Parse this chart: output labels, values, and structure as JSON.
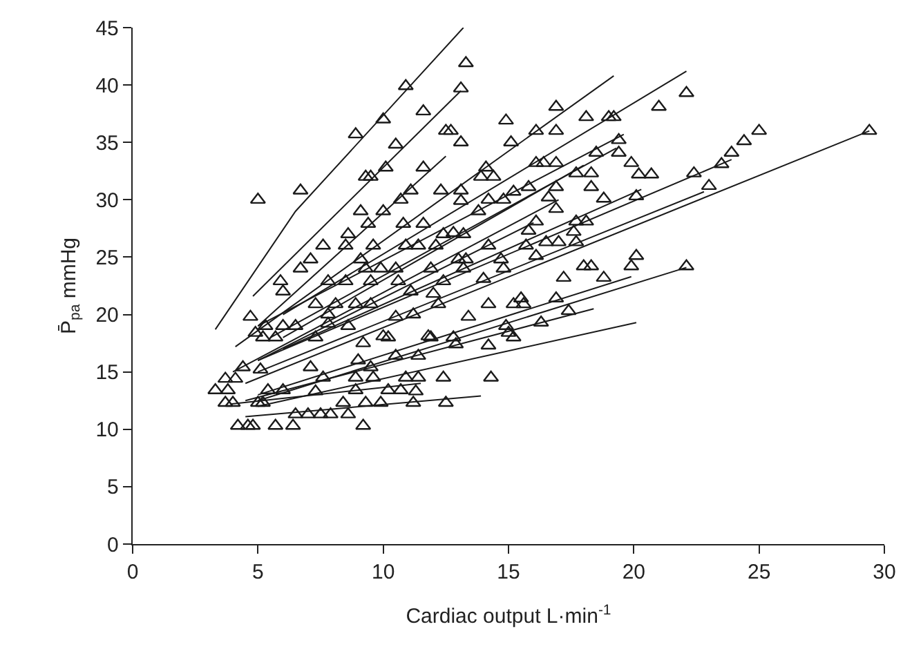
{
  "chart_data": {
    "type": "scatter",
    "xlabel": "Cardiac output L·min$^{-1}$",
    "ylabel": "P̄$_{pa}$ mmHg",
    "xlim": [
      0,
      30
    ],
    "ylim": [
      0,
      45
    ],
    "xticks": [
      0,
      5,
      10,
      15,
      20,
      25,
      30
    ],
    "yticks": [
      0,
      5,
      10,
      15,
      20,
      25,
      30,
      35,
      40,
      45
    ],
    "series": [
      {
        "marker": "triangle",
        "color": "#1a1a1a",
        "x": [
          13.3,
          10.9,
          13.1,
          11.6,
          10.0,
          14.9,
          8.9,
          12.5,
          12.7,
          13.1,
          10.5,
          15.1,
          11.6,
          10.1,
          9.3,
          9.5,
          14.1,
          13.9,
          14.4,
          5.0,
          6.7,
          11.1,
          12.3,
          13.1,
          10.7,
          9.1,
          13.1,
          13.8,
          14.2,
          14.8,
          15.2,
          10.0,
          9.4,
          10.8,
          11.6,
          8.6,
          12.4,
          12.8,
          13.2,
          7.6,
          8.5,
          9.6,
          10.9,
          11.4,
          12.1,
          14.2,
          15.7,
          7.1,
          9.1,
          13.0,
          13.3,
          14.7,
          6.7,
          9.3,
          9.9,
          10.5,
          11.9,
          13.2,
          14.8,
          5.9,
          7.8,
          8.5,
          9.5,
          10.6,
          12.4,
          14.0,
          6.0,
          11.1,
          12.0,
          7.3,
          8.1,
          8.9,
          9.5,
          12.2,
          14.2,
          15.2,
          15.6,
          4.7,
          7.8,
          10.5,
          11.2,
          5.3,
          6.0,
          6.5,
          7.8,
          8.6,
          13.4,
          14.9,
          5.2,
          5.7,
          7.3,
          10.2,
          11.9,
          12.8,
          15.2,
          4.9,
          10.0,
          11.8,
          12.9,
          14.2,
          15.0,
          9.2,
          4.4,
          3.7,
          4.1,
          5.1,
          7.1,
          7.6,
          9.0,
          9.5,
          10.5,
          11.4,
          8.9,
          9.6,
          10.9,
          11.4,
          12.4,
          14.3,
          3.3,
          3.8,
          5.4,
          6.0,
          7.3,
          8.9,
          10.2,
          10.7,
          11.3,
          3.7,
          4.0,
          5.0,
          5.2,
          8.4,
          9.3,
          9.9,
          11.2,
          12.5,
          6.5,
          7.0,
          7.5,
          7.9,
          8.6,
          4.2,
          4.6,
          4.8,
          5.7,
          6.4,
          9.2,
          16.9,
          18.1,
          19.0,
          19.2,
          21.0,
          22.1,
          16.1,
          16.9,
          19.4,
          18.5,
          19.4,
          16.1,
          16.4,
          16.9,
          19.9,
          17.7,
          18.3,
          20.2,
          20.7,
          22.4,
          23.5,
          23.9,
          24.4,
          25.0,
          29.4,
          23.0,
          15.8,
          16.9,
          18.3,
          16.6,
          18.8,
          20.1,
          16.9,
          16.1,
          17.7,
          18.1,
          15.8,
          17.6,
          16.5,
          17.0,
          17.7,
          16.1,
          18.0,
          18.3,
          19.9,
          20.1,
          22.1,
          17.2,
          18.8,
          15.5,
          16.9,
          17.4,
          16.3
        ],
        "values": [
          41.9,
          39.9,
          39.7,
          37.7,
          37.0,
          36.9,
          35.7,
          36.0,
          36.0,
          35.0,
          34.8,
          35.0,
          32.8,
          32.8,
          32.0,
          32.0,
          32.8,
          32.0,
          32.0,
          30.0,
          30.8,
          30.8,
          30.8,
          30.8,
          30.0,
          29.0,
          29.9,
          29.0,
          30.0,
          30.0,
          30.7,
          29.0,
          27.9,
          27.9,
          27.9,
          27.0,
          27.0,
          27.1,
          27.0,
          26.0,
          26.0,
          26.0,
          26.0,
          26.0,
          26.0,
          26.0,
          26.0,
          24.8,
          24.8,
          24.8,
          24.8,
          24.8,
          24.0,
          24.0,
          24.0,
          24.0,
          24.0,
          24.0,
          24.0,
          22.9,
          22.9,
          22.9,
          22.9,
          22.9,
          22.9,
          23.1,
          22.0,
          22.0,
          21.8,
          20.9,
          20.9,
          20.9,
          20.9,
          20.9,
          20.9,
          20.9,
          20.9,
          19.8,
          20.0,
          19.8,
          20.0,
          19.0,
          19.0,
          19.0,
          19.2,
          19.0,
          19.8,
          19.0,
          18.0,
          18.0,
          18.0,
          18.0,
          18.0,
          18.0,
          18.0,
          18.4,
          18.1,
          18.1,
          17.4,
          17.3,
          18.4,
          17.5,
          15.4,
          14.4,
          14.4,
          15.2,
          15.4,
          14.5,
          16.0,
          15.4,
          16.4,
          16.4,
          14.5,
          14.5,
          14.5,
          14.5,
          14.5,
          14.5,
          13.4,
          13.4,
          13.4,
          13.4,
          13.3,
          13.4,
          13.4,
          13.4,
          13.3,
          12.3,
          12.3,
          12.3,
          12.3,
          12.3,
          12.3,
          12.3,
          12.3,
          12.3,
          11.3,
          11.3,
          11.3,
          11.3,
          11.3,
          10.3,
          10.3,
          10.3,
          10.3,
          10.3,
          10.3,
          38.1,
          37.2,
          37.2,
          37.2,
          38.1,
          39.3,
          36.0,
          36.0,
          35.2,
          34.1,
          34.1,
          33.2,
          33.2,
          33.2,
          33.2,
          32.3,
          32.3,
          32.2,
          32.2,
          32.3,
          33.1,
          34.1,
          35.1,
          36.0,
          36.0,
          31.2,
          31.1,
          31.1,
          31.1,
          30.2,
          30.1,
          30.3,
          29.2,
          28.1,
          28.1,
          28.1,
          27.3,
          27.2,
          26.3,
          26.3,
          26.3,
          25.1,
          24.2,
          24.2,
          24.2,
          25.1,
          24.2,
          23.2,
          23.2,
          21.4,
          21.4,
          20.3,
          19.3
        ]
      },
      {
        "type": "line",
        "marker": "none",
        "color": "#1a1a1a",
        "x": [
          3.3,
          6.5,
          13.2
        ],
        "values": [
          18.7,
          29.0,
          45.0
        ]
      },
      {
        "type": "line",
        "marker": "none",
        "color": "#1a1a1a",
        "x": [
          4.8,
          13.1
        ],
        "values": [
          21.6,
          39.5
        ]
      },
      {
        "type": "line",
        "marker": "none",
        "color": "#1a1a1a",
        "x": [
          5.0,
          12.5
        ],
        "values": [
          19.0,
          33.8
        ]
      },
      {
        "type": "line",
        "marker": "none",
        "color": "#1a1a1a",
        "x": [
          4.1,
          19.2
        ],
        "values": [
          17.2,
          40.8
        ]
      },
      {
        "type": "line",
        "marker": "none",
        "color": "#1a1a1a",
        "x": [
          6.0,
          22.1
        ],
        "values": [
          20.0,
          41.2
        ]
      },
      {
        "type": "line",
        "marker": "none",
        "color": "#1a1a1a",
        "x": [
          4.5,
          29.4
        ],
        "values": [
          14.0,
          36.0
        ]
      },
      {
        "type": "line",
        "marker": "none",
        "color": "#1a1a1a",
        "x": [
          5.0,
          23.9
        ],
        "values": [
          16.0,
          33.5
        ]
      },
      {
        "type": "line",
        "marker": "none",
        "color": "#1a1a1a",
        "x": [
          5.0,
          22.8
        ],
        "values": [
          15.0,
          30.7
        ]
      },
      {
        "type": "line",
        "marker": "none",
        "color": "#1a1a1a",
        "x": [
          5.0,
          19.6
        ],
        "values": [
          19.0,
          35.7
        ]
      },
      {
        "type": "line",
        "marker": "none",
        "color": "#1a1a1a",
        "x": [
          5.5,
          19.3
        ],
        "values": [
          18.0,
          34.5
        ]
      },
      {
        "type": "line",
        "marker": "none",
        "color": "#1a1a1a",
        "x": [
          6.0,
          20.3
        ],
        "values": [
          17.0,
          30.9
        ]
      },
      {
        "type": "line",
        "marker": "none",
        "color": "#1a1a1a",
        "x": [
          4.0,
          17.0
        ],
        "values": [
          15.0,
          30.0
        ]
      },
      {
        "type": "line",
        "marker": "none",
        "color": "#1a1a1a",
        "x": [
          6.0,
          18.0
        ],
        "values": [
          18.0,
          33.0
        ]
      },
      {
        "type": "line",
        "marker": "none",
        "color": "#1a1a1a",
        "x": [
          5.0,
          16.0
        ],
        "values": [
          16.0,
          28.0
        ]
      },
      {
        "type": "line",
        "marker": "none",
        "color": "#1a1a1a",
        "x": [
          5.0,
          22.1
        ],
        "values": [
          12.5,
          24.1
        ]
      },
      {
        "type": "line",
        "marker": "none",
        "color": "#1a1a1a",
        "x": [
          5.0,
          19.9
        ],
        "values": [
          13.0,
          23.3
        ]
      },
      {
        "type": "line",
        "marker": "none",
        "color": "#1a1a1a",
        "x": [
          4.5,
          18.4
        ],
        "values": [
          12.5,
          20.5
        ]
      },
      {
        "type": "line",
        "marker": "none",
        "color": "#1a1a1a",
        "x": [
          5.0,
          20.1
        ],
        "values": [
          12.0,
          19.3
        ]
      },
      {
        "type": "line",
        "marker": "none",
        "color": "#1a1a1a",
        "x": [
          4.5,
          13.9
        ],
        "values": [
          11.1,
          12.9
        ]
      },
      {
        "type": "line",
        "marker": "none",
        "color": "#1a1a1a",
        "x": [
          3.9,
          11.5
        ],
        "values": [
          12.2,
          14.0
        ]
      }
    ]
  }
}
